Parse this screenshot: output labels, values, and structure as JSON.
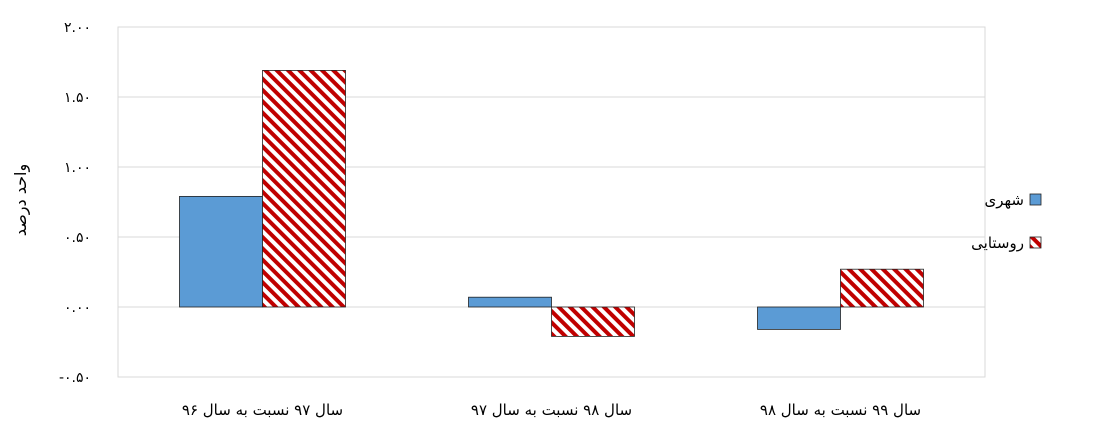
{
  "chart_data": {
    "type": "bar",
    "title": "",
    "xlabel": "",
    "ylabel": "واحد درصد",
    "ylim": [
      -0.5,
      2.0
    ],
    "yticks": [
      -0.5,
      0.0,
      0.5,
      1.0,
      1.5,
      2.0
    ],
    "ytick_labels": [
      "-۰.۵۰",
      "۰.۰۰",
      "۰.۵۰",
      "۱.۰۰",
      "۱.۵۰",
      "۲.۰۰"
    ],
    "grid": true,
    "legend_position": "right",
    "categories": [
      "سال ۹۷ نسبت به سال ۹۶",
      "سال ۹۸ نسبت به سال ۹۷",
      "سال ۹۹ نسبت به سال ۹۸"
    ],
    "series": [
      {
        "name": "شهری",
        "values": [
          0.79,
          0.07,
          -0.16
        ],
        "color": "#5b9bd5",
        "pattern": "solid"
      },
      {
        "name": "روستایی",
        "values": [
          1.69,
          -0.21,
          0.27
        ],
        "color": "#c00000",
        "pattern": "diagonal-hatch"
      }
    ]
  }
}
